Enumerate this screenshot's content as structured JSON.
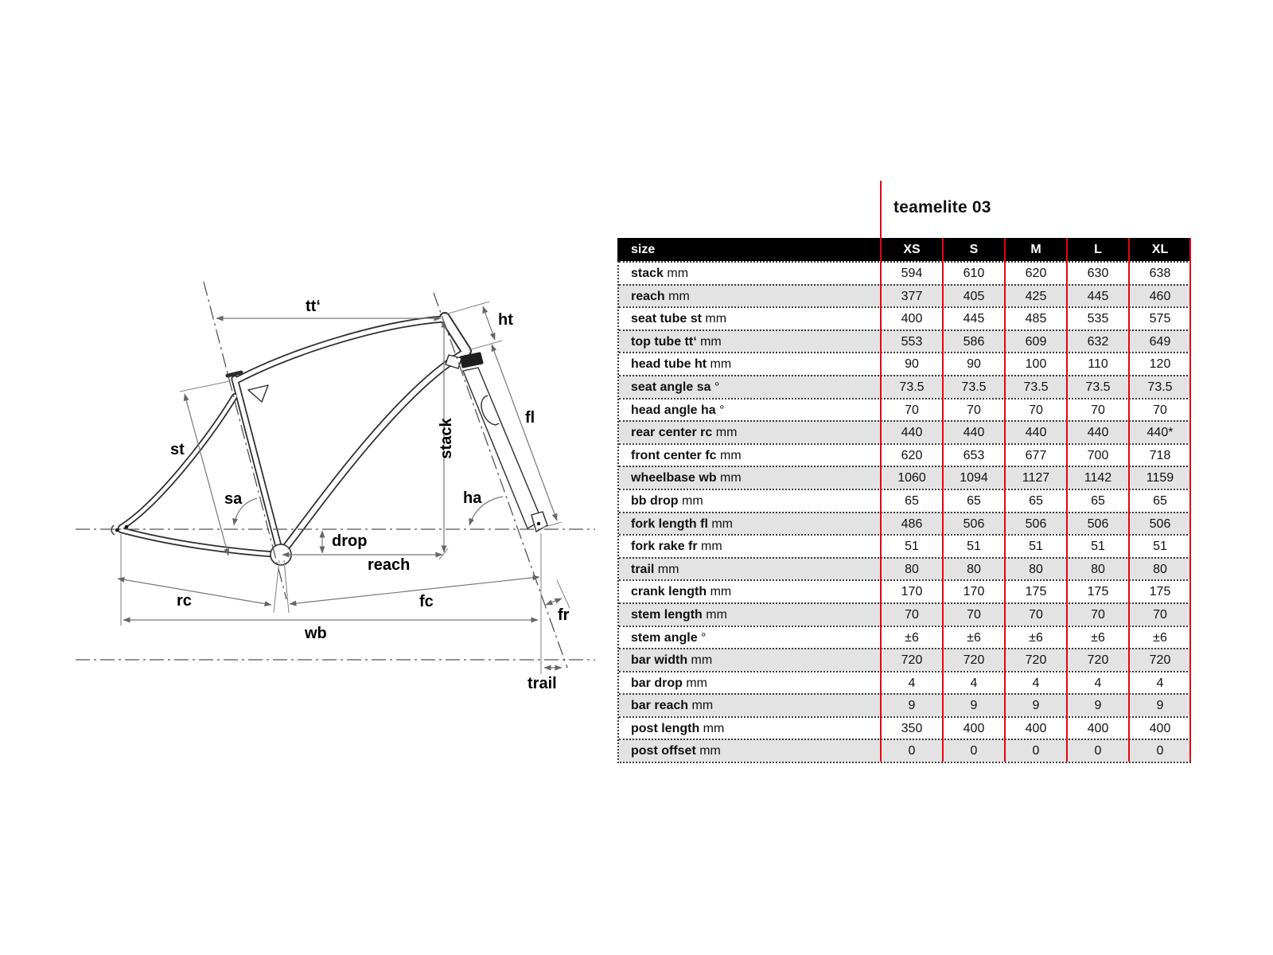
{
  "title": "teamelite 03",
  "colors": {
    "accent_red": "#e30613",
    "row_alt_gray": "#e3e3e3",
    "header_bg": "#000000",
    "header_fg": "#ffffff"
  },
  "table": {
    "header": {
      "size_label": "size",
      "columns": [
        "XS",
        "S",
        "M",
        "L",
        "XL"
      ]
    },
    "rows": [
      {
        "label": "stack",
        "unit": "mm",
        "values": [
          "594",
          "610",
          "620",
          "630",
          "638"
        ]
      },
      {
        "label": "reach",
        "unit": "mm",
        "values": [
          "377",
          "405",
          "425",
          "445",
          "460"
        ]
      },
      {
        "label": "seat tube st",
        "unit": "mm",
        "values": [
          "400",
          "445",
          "485",
          "535",
          "575"
        ]
      },
      {
        "label": "top tube tt‘",
        "unit": "mm",
        "values": [
          "553",
          "586",
          "609",
          "632",
          "649"
        ]
      },
      {
        "label": "head tube ht",
        "unit": "mm",
        "values": [
          "90",
          "90",
          "100",
          "110",
          "120"
        ]
      },
      {
        "label": "seat angle sa",
        "unit": "°",
        "values": [
          "73.5",
          "73.5",
          "73.5",
          "73.5",
          "73.5"
        ]
      },
      {
        "label": "head angle ha",
        "unit": "°",
        "values": [
          "70",
          "70",
          "70",
          "70",
          "70"
        ]
      },
      {
        "label": "rear center rc",
        "unit": "mm",
        "values": [
          "440",
          "440",
          "440",
          "440",
          "440*"
        ]
      },
      {
        "label": "front center fc",
        "unit": "mm",
        "values": [
          "620",
          "653",
          "677",
          "700",
          "718"
        ]
      },
      {
        "label": "wheelbase wb",
        "unit": "mm",
        "values": [
          "1060",
          "1094",
          "1127",
          "1142",
          "1159"
        ]
      },
      {
        "label": "bb drop",
        "unit": "mm",
        "values": [
          "65",
          "65",
          "65",
          "65",
          "65"
        ]
      },
      {
        "label": "fork length fl",
        "unit": "mm",
        "values": [
          "486",
          "506",
          "506",
          "506",
          "506"
        ]
      },
      {
        "label": "fork rake fr",
        "unit": "mm",
        "values": [
          "51",
          "51",
          "51",
          "51",
          "51"
        ]
      },
      {
        "label": "trail",
        "unit": "mm",
        "values": [
          "80",
          "80",
          "80",
          "80",
          "80"
        ]
      },
      {
        "label": "crank length",
        "unit": "mm",
        "values": [
          "170",
          "170",
          "175",
          "175",
          "175"
        ]
      },
      {
        "label": "stem length",
        "unit": "mm",
        "values": [
          "70",
          "70",
          "70",
          "70",
          "70"
        ]
      },
      {
        "label": "stem angle",
        "unit": "°",
        "values": [
          "±6",
          "±6",
          "±6",
          "±6",
          "±6"
        ]
      },
      {
        "label": "bar width",
        "unit": "mm",
        "values": [
          "720",
          "720",
          "720",
          "720",
          "720"
        ]
      },
      {
        "label": "bar drop",
        "unit": "mm",
        "values": [
          "4",
          "4",
          "4",
          "4",
          "4"
        ]
      },
      {
        "label": "bar reach",
        "unit": "mm",
        "values": [
          "9",
          "9",
          "9",
          "9",
          "9"
        ]
      },
      {
        "label": "post length",
        "unit": "mm",
        "values": [
          "350",
          "400",
          "400",
          "400",
          "400"
        ]
      },
      {
        "label": "post offset",
        "unit": "mm",
        "values": [
          "0",
          "0",
          "0",
          "0",
          "0"
        ]
      }
    ]
  },
  "diagram": {
    "labels": {
      "tt_prime": "tt‘",
      "ht": "ht",
      "st": "st",
      "sa": "sa",
      "stack": "stack",
      "fl": "fl",
      "ha": "ha",
      "drop": "drop",
      "reach": "reach",
      "rc": "rc",
      "fc": "fc",
      "fr": "fr",
      "wb": "wb",
      "trail": "trail"
    }
  }
}
